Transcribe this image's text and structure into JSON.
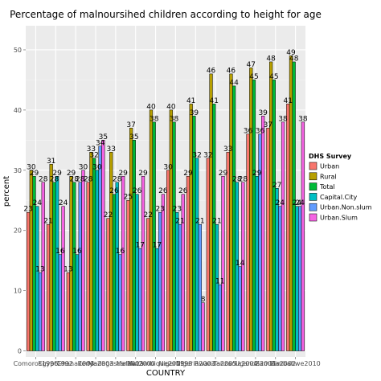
{
  "chart_data": {
    "type": "bar",
    "title": "Percentage of malnoursihed children according to height for age",
    "xlabel": "COUNTRY",
    "ylabel": "percent",
    "ylim": [
      -1,
      54
    ],
    "yticks": [
      0,
      10,
      20,
      30,
      40,
      50
    ],
    "grid": true,
    "legend_position": "right",
    "legend_title": "DHS Survey",
    "categories": [
      "Comoros1996",
      "Egypt1992",
      "Ghana2003",
      "Kenya2003",
      "Madagascar2003",
      "Malawi2000",
      "Mozambique2003",
      "Niger1998",
      "Nigeria2003",
      "Rwanda2005",
      "Tanzania2004",
      "Uganda2001",
      "Zambia2002",
      "Zimbabwe2010"
    ],
    "tick_labels": [
      "Comoros1996",
      "Egypt1992",
      "Ghana2003",
      "Kenya2003",
      "Madagascar2003",
      "Malawi2000",
      "Mozambique2003",
      "Niger1998",
      "Nigeria2003",
      "Rwanda2005",
      "Tanzania2004",
      "Uganda2001",
      "Zambia2002",
      "Zimbabwe2010"
    ],
    "series": [
      {
        "name": "Urban",
        "color": "#F8766D",
        "values": [
          23,
          21,
          13,
          28,
          22,
          25,
          22,
          30,
          29,
          32,
          33,
          36,
          37,
          41
        ]
      },
      {
        "name": "Rural",
        "color": "#B79F00",
        "values": [
          30,
          31,
          29,
          33,
          33,
          37,
          40,
          40,
          41,
          46,
          46,
          47,
          48,
          49
        ]
      },
      {
        "name": "Total",
        "color": "#00BA38",
        "values": [
          29,
          28,
          28,
          32,
          26,
          35,
          38,
          38,
          39,
          41,
          44,
          45,
          45,
          48
        ]
      },
      {
        "name": "Capital.City",
        "color": "#00BFC4",
        "values": [
          24,
          29,
          16,
          30,
          28,
          26,
          17,
          23,
          32,
          21,
          28,
          29,
          27,
          24
        ]
      },
      {
        "name": "Urban.Non.slum",
        "color": "#619CFF",
        "values": [
          13,
          16,
          28,
          34,
          16,
          17,
          23,
          21,
          21,
          11,
          14,
          36,
          24,
          24
        ]
      },
      {
        "name": "Urban.Slum",
        "color": "#F564E3",
        "values": [
          28,
          24,
          30,
          35,
          29,
          29,
          26,
          26,
          8,
          29,
          28,
          39,
          38,
          38
        ]
      }
    ]
  }
}
